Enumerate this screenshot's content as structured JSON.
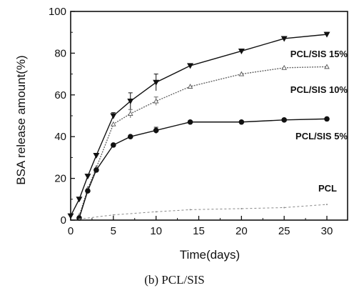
{
  "caption": "(b) PCL/SIS",
  "chart_data": {
    "type": "line",
    "xlabel": "Time(days)",
    "ylabel": "BSA release amount(%)",
    "xlim": [
      0,
      30
    ],
    "ylim": [
      0,
      100
    ],
    "xticks": [
      0,
      5,
      10,
      15,
      20,
      25,
      30
    ],
    "yticks": [
      0,
      20,
      40,
      60,
      80,
      100
    ],
    "grid": false,
    "legend": "inline labels at line ends",
    "series": [
      {
        "name": "PCL/SIS 15%",
        "marker": "triangle-down-filled",
        "color": "#111111",
        "x": [
          0,
          1,
          2,
          3,
          5,
          7,
          10,
          14,
          20,
          25,
          30
        ],
        "y": [
          2,
          10,
          21,
          31,
          50,
          57,
          66,
          74,
          81,
          87,
          89
        ],
        "err": [
          0,
          0,
          0,
          0,
          1.5,
          4,
          4,
          0,
          0,
          0,
          1
        ]
      },
      {
        "name": "PCL/SIS 10%",
        "marker": "triangle-up-open",
        "color": "#666666",
        "x": [
          1,
          2,
          3,
          5,
          7,
          10,
          14,
          20,
          25,
          30
        ],
        "y": [
          2,
          15,
          25,
          46,
          51,
          57,
          64,
          70,
          73,
          73.5
        ],
        "err": [
          0,
          0,
          0,
          0,
          2,
          2,
          0,
          0,
          0,
          0
        ]
      },
      {
        "name": "PCL/SIS 5%",
        "marker": "circle-filled",
        "color": "#111111",
        "x": [
          1,
          2,
          3,
          5,
          7,
          10,
          14,
          20,
          25,
          30
        ],
        "y": [
          1,
          14,
          24,
          36,
          40,
          43,
          47,
          47,
          48,
          48.5
        ],
        "err": [
          0,
          0,
          0,
          0,
          0,
          1.5,
          0,
          0,
          0,
          0
        ]
      },
      {
        "name": "PCL",
        "marker": "dot",
        "color": "#888888",
        "x": [
          1,
          5,
          10,
          14,
          20,
          25,
          30
        ],
        "y": [
          0.5,
          2.5,
          4,
          5,
          5.5,
          6,
          7.5
        ],
        "err": [
          0,
          0,
          0,
          0,
          0,
          0,
          0
        ]
      }
    ]
  }
}
